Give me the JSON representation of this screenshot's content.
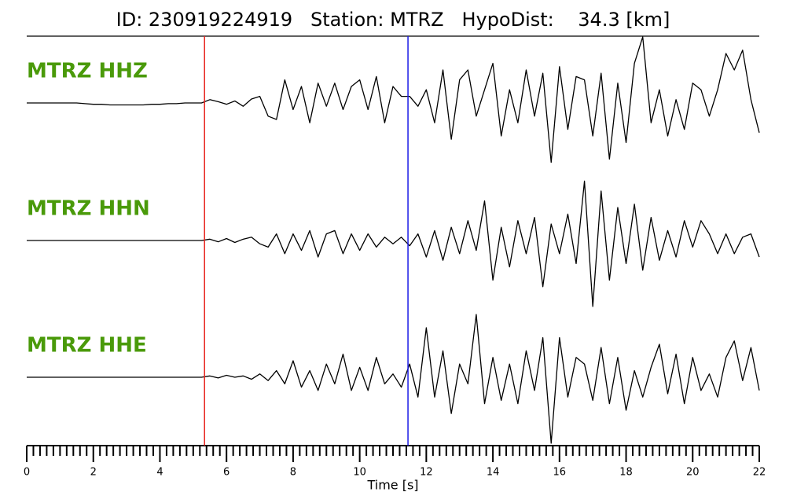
{
  "chart_data": {
    "type": "seismogram",
    "title": "ID: 230919224919   Station: MTRZ   HypoDist:    34.3 [km]",
    "xlabel": "Time [s]",
    "xlim": [
      0,
      22
    ],
    "xticks": [
      0,
      2,
      4,
      6,
      8,
      10,
      12,
      14,
      16,
      18,
      20,
      22
    ],
    "xticks_minor": [
      0.2,
      0.4,
      0.6,
      0.8,
      1,
      1.2,
      1.4,
      1.6,
      1.8,
      2.2,
      2.4,
      2.6,
      2.8,
      3,
      3.2,
      3.4,
      3.6,
      3.8,
      4.2,
      4.4,
      4.6,
      4.8,
      5,
      5.2,
      5.4,
      5.6,
      5.8,
      6.2,
      6.4,
      6.6,
      6.8,
      7,
      7.2,
      7.4,
      7.6,
      7.8,
      8.2,
      8.4,
      8.6,
      8.8,
      9,
      9.2,
      9.4,
      9.6,
      9.8,
      10.2,
      10.4,
      10.6,
      10.8,
      11,
      11.2,
      11.4,
      11.6,
      11.8,
      12.2,
      12.4,
      12.6,
      12.8,
      13,
      13.2,
      13.4,
      13.6,
      13.8,
      14.2,
      14.4,
      14.6,
      14.8,
      15,
      15.2,
      15.4,
      15.6,
      15.8,
      16.2,
      16.4,
      16.6,
      16.8,
      17,
      17.2,
      17.4,
      17.6,
      17.8,
      18.2,
      18.4,
      18.6,
      18.8,
      19,
      19.2,
      19.4,
      19.6,
      19.8,
      20.2,
      20.4,
      20.6,
      20.8,
      21,
      21.2,
      21.4,
      21.6,
      21.8
    ],
    "p_pick": 5.34,
    "p_color": "#e8211c",
    "s_pick": 11.45,
    "s_color": "#1a1ae6",
    "label_color": "#4a9a0a",
    "x": [
      0,
      0.25,
      0.5,
      0.75,
      1,
      1.25,
      1.5,
      1.75,
      2,
      2.25,
      2.5,
      2.75,
      3,
      3.25,
      3.5,
      3.75,
      4,
      4.25,
      4.5,
      4.75,
      5,
      5.25,
      5.5,
      5.75,
      6,
      6.25,
      6.5,
      6.75,
      7,
      7.25,
      7.5,
      7.75,
      8,
      8.25,
      8.5,
      8.75,
      9,
      9.25,
      9.5,
      9.75,
      10,
      10.25,
      10.5,
      10.75,
      11,
      11.25,
      11.5,
      11.75,
      12,
      12.25,
      12.5,
      12.75,
      13,
      13.25,
      13.5,
      13.75,
      14,
      14.25,
      14.5,
      14.75,
      15,
      15.25,
      15.5,
      15.75,
      16,
      16.25,
      16.5,
      16.75,
      17,
      17.25,
      17.5,
      17.75,
      18,
      18.25,
      18.5,
      18.75,
      19,
      19.25,
      19.5,
      19.75,
      20,
      20.25,
      20.5,
      20.75,
      21,
      21.25,
      21.5,
      21.75,
      22
    ],
    "series": [
      {
        "name": "MTRZ HHZ",
        "color": "#000000",
        "values": [
          0,
          0,
          0,
          0,
          0,
          0,
          0,
          -0.01,
          -0.02,
          -0.02,
          -0.03,
          -0.03,
          -0.03,
          -0.03,
          -0.03,
          -0.02,
          -0.02,
          -0.01,
          -0.01,
          0,
          0,
          0,
          0.05,
          0.02,
          -0.02,
          0.03,
          -0.05,
          0.06,
          0.1,
          -0.2,
          -0.25,
          0.35,
          -0.1,
          0.25,
          -0.3,
          0.3,
          -0.05,
          0.3,
          -0.1,
          0.25,
          0.35,
          -0.1,
          0.4,
          -0.3,
          0.25,
          0.1,
          0.1,
          -0.05,
          0.2,
          -0.3,
          0.5,
          -0.55,
          0.35,
          0.5,
          -0.2,
          0.2,
          0.6,
          -0.5,
          0.2,
          -0.3,
          0.5,
          -0.2,
          0.45,
          -0.9,
          0.55,
          -0.4,
          0.4,
          0.35,
          -0.5,
          0.45,
          -0.85,
          0.3,
          -0.6,
          0.6,
          1.0,
          -0.3,
          0.2,
          -0.5,
          0.05,
          -0.4,
          0.3,
          0.2,
          -0.2,
          0.2,
          0.75,
          0.5,
          0.8,
          0.05,
          -0.45
        ]
      },
      {
        "name": "MTRZ HHN",
        "color": "#000000",
        "values": [
          0,
          0,
          0,
          0,
          0,
          0,
          0,
          0,
          0,
          0,
          0,
          0,
          0,
          0,
          0,
          0,
          0,
          0,
          0,
          0,
          0,
          0,
          0.02,
          -0.02,
          0.03,
          -0.03,
          0.02,
          0.05,
          -0.05,
          -0.1,
          0.1,
          -0.2,
          0.1,
          -0.15,
          0.15,
          -0.25,
          0.1,
          0.15,
          -0.2,
          0.1,
          -0.15,
          0.1,
          -0.1,
          0.05,
          -0.05,
          0.05,
          -0.08,
          0.1,
          -0.25,
          0.15,
          -0.3,
          0.2,
          -0.2,
          0.3,
          -0.15,
          0.6,
          -0.6,
          0.2,
          -0.4,
          0.3,
          -0.2,
          0.35,
          -0.7,
          0.25,
          -0.2,
          0.4,
          -0.35,
          0.9,
          -1.0,
          0.75,
          -0.6,
          0.5,
          -0.35,
          0.55,
          -0.45,
          0.35,
          -0.3,
          0.15,
          -0.25,
          0.3,
          -0.1,
          0.3,
          0.1,
          -0.2,
          0.1,
          -0.2,
          0.05,
          0.1,
          -0.25
        ]
      },
      {
        "name": "MTRZ HHE",
        "color": "#000000",
        "values": [
          0,
          0,
          0,
          0,
          0,
          0,
          0,
          0,
          0,
          0,
          0,
          0,
          0,
          0,
          0,
          0,
          0,
          0,
          0,
          0,
          0,
          0,
          0.02,
          -0.01,
          0.03,
          0,
          0.02,
          -0.03,
          0.05,
          -0.05,
          0.1,
          -0.1,
          0.25,
          -0.15,
          0.1,
          -0.2,
          0.2,
          -0.1,
          0.35,
          -0.2,
          0.15,
          -0.2,
          0.3,
          -0.1,
          0.05,
          -0.15,
          0.2,
          -0.3,
          0.75,
          -0.3,
          0.4,
          -0.55,
          0.2,
          -0.1,
          0.95,
          -0.4,
          0.3,
          -0.35,
          0.2,
          -0.4,
          0.4,
          -0.2,
          0.6,
          -1.0,
          0.6,
          -0.3,
          0.3,
          0.2,
          -0.35,
          0.45,
          -0.4,
          0.3,
          -0.5,
          0.1,
          -0.3,
          0.15,
          0.5,
          -0.25,
          0.35,
          -0.4,
          0.3,
          -0.2,
          0.05,
          -0.3,
          0.3,
          0.55,
          -0.05,
          0.45,
          -0.2
        ]
      }
    ]
  }
}
